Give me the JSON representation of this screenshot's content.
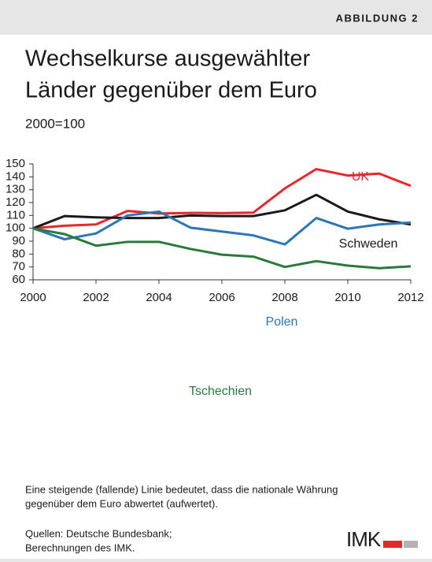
{
  "header": "ABBILDUNG 2",
  "chart_data": {
    "type": "line",
    "title": [
      "Wechselkurse ausgewählter",
      "Länder gegenüber dem Euro"
    ],
    "subtitle": "2000=100",
    "x": [
      2000,
      2001,
      2002,
      2003,
      2004,
      2005,
      2006,
      2007,
      2008,
      2009,
      2010,
      2011,
      2012
    ],
    "xlim": [
      2000,
      2012
    ],
    "xticks": [
      2000,
      2002,
      2004,
      2006,
      2008,
      2010,
      2012
    ],
    "ylim": [
      60,
      150
    ],
    "yticks": [
      60,
      70,
      80,
      90,
      100,
      110,
      120,
      130,
      140,
      150
    ],
    "series": [
      {
        "name": "UK",
        "color": "#e8262d",
        "values": [
          100,
          102,
          103,
          113.5,
          111.5,
          112,
          111.8,
          112.2,
          131,
          146,
          141,
          142.5,
          133
        ]
      },
      {
        "name": "Schweden",
        "color": "#1a1a1a",
        "values": [
          100,
          109.5,
          108.5,
          108,
          108,
          110,
          109.5,
          109.5,
          114,
          126,
          113,
          107,
          103
        ]
      },
      {
        "name": "Polen",
        "color": "#2e75b6",
        "values": [
          100,
          91.5,
          96,
          110,
          113,
          100.5,
          97.5,
          94.5,
          87.5,
          108,
          99.7,
          103,
          104.5
        ]
      },
      {
        "name": "Tschechien",
        "color": "#2a7a3b",
        "values": [
          100,
          95.5,
          86.5,
          89.5,
          89.5,
          84,
          79.5,
          78,
          70,
          74.5,
          71,
          69,
          70.5
        ]
      }
    ]
  },
  "note": [
    "Eine steigende (fallende) Linie bedeutet, dass die nationale Währung",
    "gegenüber dem Euro abwertet (aufwertet)."
  ],
  "source": [
    "Quellen: Deutsche Bundesbank;",
    "Berechnungen des IMK."
  ],
  "logo": "IMK"
}
